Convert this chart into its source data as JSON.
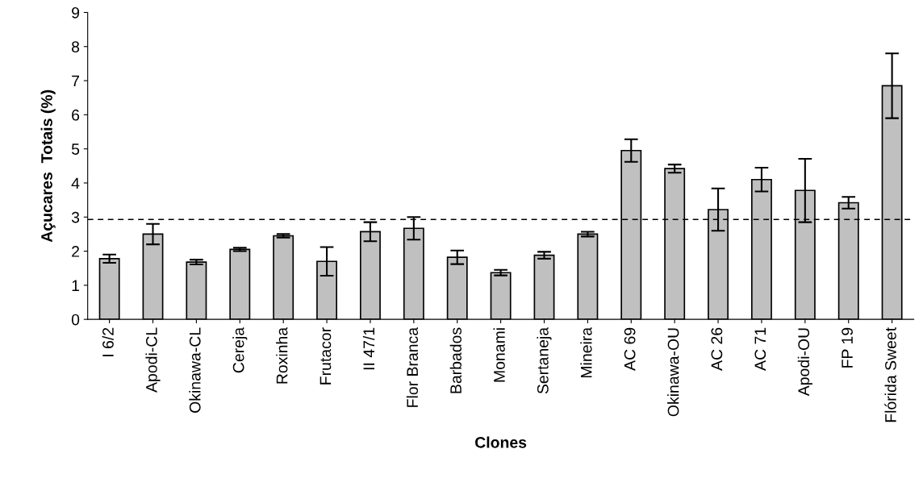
{
  "chart_data": {
    "type": "bar",
    "xlabel": "Clones",
    "ylabel": "Açucares  Totais (%)",
    "categories": [
      "I 6/2",
      "Apodi-CL",
      "Okinawa-CL",
      "Cereja",
      "Roxinha",
      "Frutacor",
      "II 47/1",
      "Flor Branca",
      "Barbados",
      "Monami",
      "Sertaneja",
      "Mineira",
      "AC 69",
      "Okinawa-OU",
      "AC 26",
      "AC 71",
      "Apodi-OU",
      "FP 19",
      "Flórida Sweet"
    ],
    "values": [
      1.78,
      2.5,
      1.68,
      2.05,
      2.45,
      1.7,
      2.57,
      2.67,
      1.82,
      1.37,
      1.88,
      2.5,
      4.95,
      4.42,
      3.22,
      4.1,
      3.78,
      3.42,
      6.85
    ],
    "errors": [
      0.12,
      0.3,
      0.07,
      0.05,
      0.05,
      0.42,
      0.28,
      0.33,
      0.2,
      0.08,
      0.1,
      0.07,
      0.33,
      0.12,
      0.62,
      0.35,
      0.93,
      0.17,
      0.95
    ],
    "color": "#c0c0c0",
    "ylim": [
      0,
      9
    ],
    "yticks": [
      0,
      1,
      2,
      3,
      4,
      5,
      6,
      7,
      8,
      9
    ],
    "ref_lines": [
      {
        "axis": "y",
        "value": 2.93,
        "color": "#000000",
        "line_style": "dashed"
      }
    ],
    "grid": false
  }
}
